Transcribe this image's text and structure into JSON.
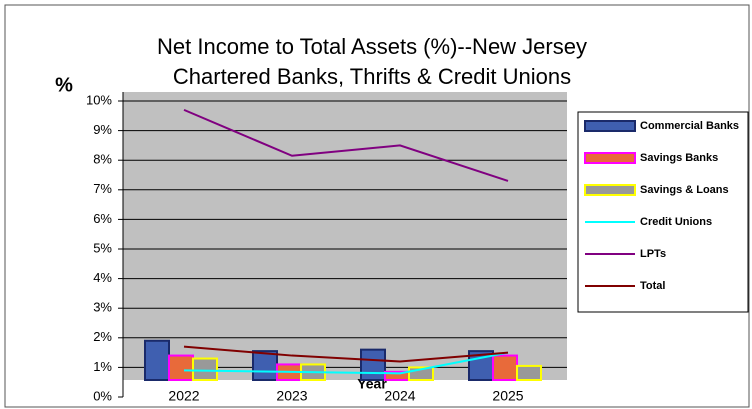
{
  "chart_data": {
    "type": "bar",
    "title": [
      "Net Income to Total Assets (%)--New Jersey",
      "Chartered Banks, Thrifts & Credit Unions"
    ],
    "y_label": "%",
    "x_label": "Year",
    "categories": [
      "2022",
      "2023",
      "2024",
      "2025"
    ],
    "series": [
      {
        "name": "Commercial Banks",
        "kind": "bar",
        "color": "#3f5fb0",
        "stroke": "#1a2a6a",
        "values": [
          1.9,
          1.55,
          1.6,
          1.55
        ]
      },
      {
        "name": "Savings Banks",
        "kind": "bar",
        "color": "#e86a3a",
        "stroke": "#ff00ff",
        "values": [
          1.4,
          1.1,
          0.85,
          1.4
        ]
      },
      {
        "name": "Savings & Loans",
        "kind": "bar",
        "color": "#999999",
        "stroke": "#ffff00",
        "values": [
          1.3,
          1.1,
          1.0,
          1.05
        ]
      },
      {
        "name": "Credit Unions",
        "kind": "line",
        "color": "#00ffff",
        "values": [
          0.9,
          0.85,
          0.8,
          1.5
        ]
      },
      {
        "name": "LPTs",
        "kind": "line",
        "color": "#800080",
        "values": [
          9.7,
          8.15,
          8.5,
          7.3
        ]
      },
      {
        "name": "Total",
        "kind": "line",
        "color": "#800000",
        "values": [
          1.7,
          1.4,
          1.2,
          1.5
        ]
      }
    ],
    "ylim": [
      0,
      10
    ],
    "yticks": [
      {
        "value": 0,
        "label": "0%"
      },
      {
        "value": 1,
        "label": "1%"
      },
      {
        "value": 2,
        "label": "2%"
      },
      {
        "value": 3,
        "label": "3%"
      },
      {
        "value": 4,
        "label": "4%"
      },
      {
        "value": 5,
        "label": "5%"
      },
      {
        "value": 6,
        "label": "6%"
      },
      {
        "value": 7,
        "label": "7%"
      },
      {
        "value": 8,
        "label": "8%"
      },
      {
        "value": 9,
        "label": "9%"
      },
      {
        "value": 10,
        "label": "10%"
      }
    ],
    "grid": true,
    "legend": "right"
  }
}
